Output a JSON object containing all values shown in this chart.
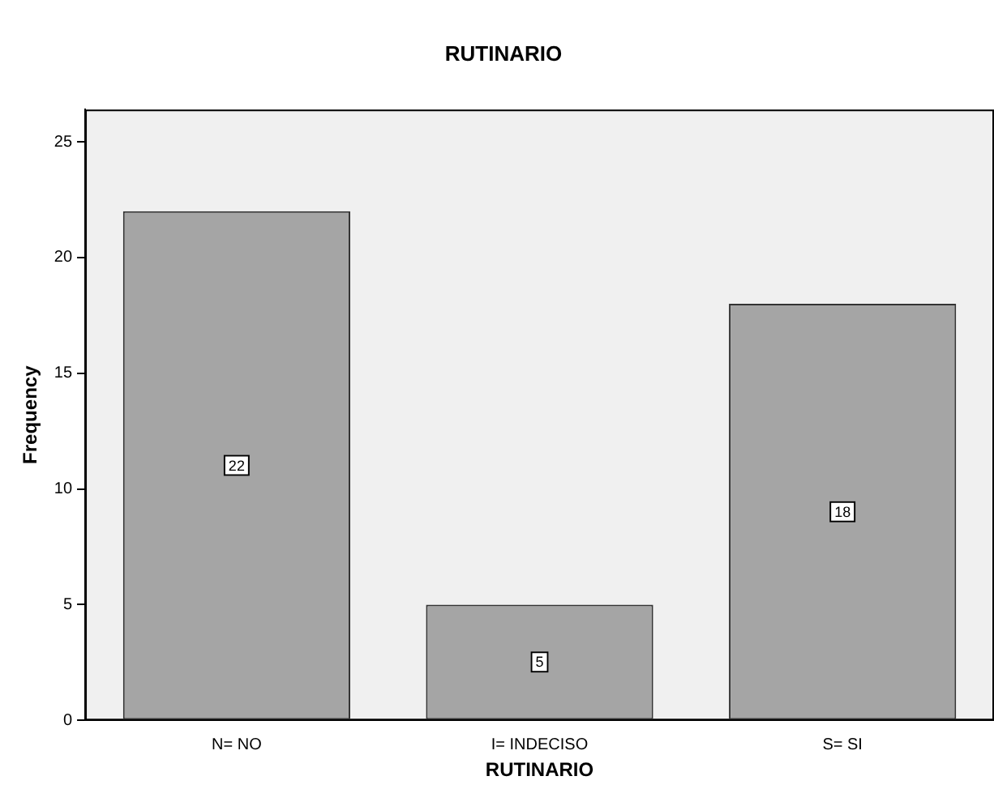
{
  "chart_data": {
    "type": "bar",
    "title": "RUTINARIO",
    "xlabel": "RUTINARIO",
    "ylabel": "Frequency",
    "categories": [
      "N= NO",
      "I= INDECISO",
      "S= SI"
    ],
    "values": [
      22,
      5,
      18
    ],
    "color": "#a5a5a5",
    "ylim": [
      0,
      26.4
    ],
    "yticks": [
      0,
      5,
      10,
      15,
      20,
      25
    ],
    "grid": false,
    "legend": false,
    "data_labels": true
  }
}
